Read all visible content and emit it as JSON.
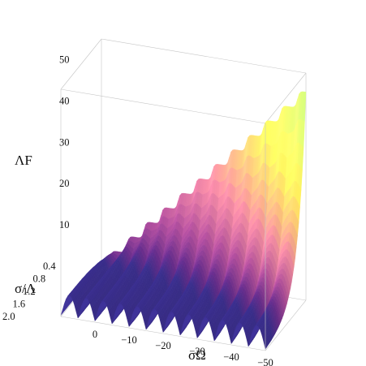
{
  "chart_data": {
    "type": "surface3d",
    "x_axis": {
      "label": "σΩ",
      "range": [
        10,
        -50
      ],
      "ticks": [
        0,
        -10,
        -20,
        -30,
        -40,
        -50
      ]
    },
    "y_axis": {
      "label": "σ/Λ",
      "range": [
        0.4,
        2.0
      ],
      "ticks": [
        0.4,
        0.8,
        1.2,
        1.6,
        2.0
      ]
    },
    "z_axis": {
      "label": "ΛF",
      "range": [
        0,
        55
      ],
      "ticks": [
        10,
        20,
        30,
        40,
        50
      ]
    },
    "step_count": 12,
    "step_height": 4.2,
    "max_value": 53,
    "colormap": [
      "#3b2f8f",
      "#6a2e8f",
      "#b04e9b",
      "#f08aa0",
      "#ffe95a",
      "#a8f07a",
      "#48c840"
    ],
    "grid": false
  }
}
